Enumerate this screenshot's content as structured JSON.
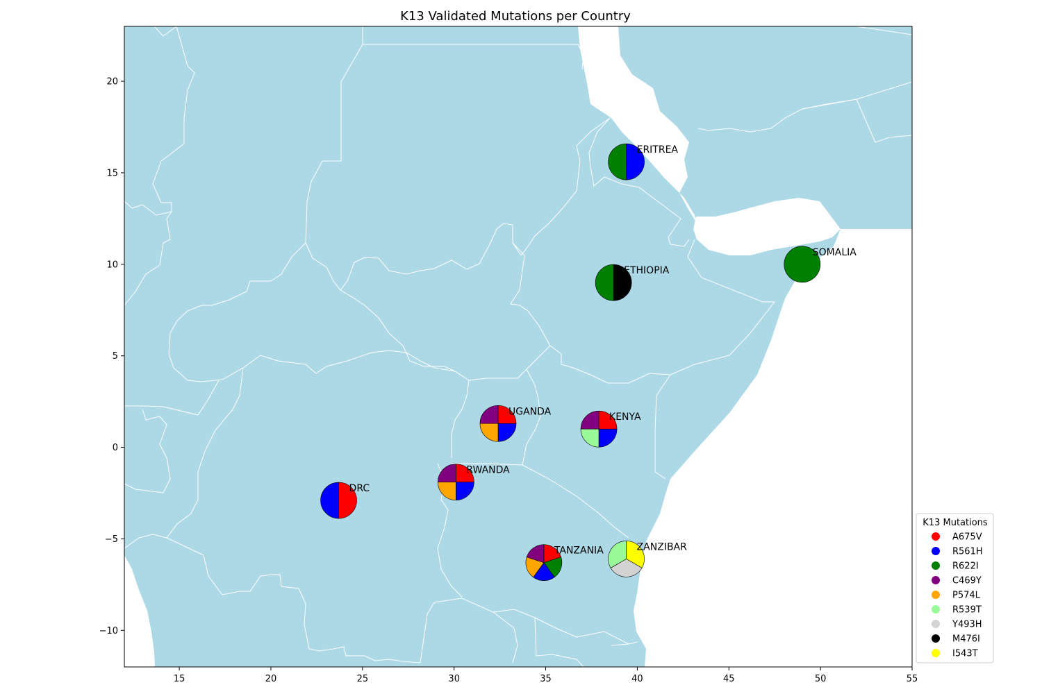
{
  "title": "K13 Validated Mutations per Country",
  "map": {
    "land_color": "#add8e6",
    "border_color": "#ffffff",
    "sea_color": "#ffffff"
  },
  "chart_data": {
    "type": "pie",
    "title": "K13 Validated Mutations per Country",
    "xlim": [
      12,
      55
    ],
    "ylim": [
      -12,
      23
    ],
    "x_ticks": [
      15,
      20,
      25,
      30,
      35,
      40,
      45,
      50,
      55
    ],
    "y_ticks": [
      -10,
      -5,
      0,
      5,
      10,
      15,
      20
    ],
    "grid": false,
    "legend_position": "lower-right",
    "legend": {
      "title": "K13 Mutations",
      "items": [
        {
          "name": "A675V",
          "color": "#ff0000"
        },
        {
          "name": "R561H",
          "color": "#0000ff"
        },
        {
          "name": "R622I",
          "color": "#008000"
        },
        {
          "name": "C469Y",
          "color": "#800080"
        },
        {
          "name": "P574L",
          "color": "#ffa500"
        },
        {
          "name": "R539T",
          "color": "#98fb98"
        },
        {
          "name": "Y493H",
          "color": "#d3d3d3"
        },
        {
          "name": "M476I",
          "color": "#000000"
        },
        {
          "name": "I543T",
          "color": "#ffff00"
        }
      ]
    },
    "countries": [
      {
        "name": "ERITREA",
        "lon": 39.4,
        "lat": 15.6,
        "mutations": [
          "R561H",
          "R622I"
        ]
      },
      {
        "name": "SOMALIA",
        "lon": 49.0,
        "lat": 10.0,
        "mutations": [
          "R622I"
        ]
      },
      {
        "name": "ETHIOPIA",
        "lon": 38.7,
        "lat": 9.0,
        "mutations": [
          "M476I",
          "R622I"
        ]
      },
      {
        "name": "UGANDA",
        "lon": 32.4,
        "lat": 1.3,
        "mutations": [
          "A675V",
          "R561H",
          "P574L",
          "C469Y"
        ]
      },
      {
        "name": "KENYA",
        "lon": 37.9,
        "lat": 1.0,
        "mutations": [
          "A675V",
          "R561H",
          "R539T",
          "C469Y"
        ]
      },
      {
        "name": "RWANDA",
        "lon": 30.1,
        "lat": -1.9,
        "mutations": [
          "A675V",
          "R561H",
          "P574L",
          "C469Y"
        ]
      },
      {
        "name": "DRC",
        "lon": 23.7,
        "lat": -2.9,
        "mutations": [
          "A675V",
          "R561H"
        ]
      },
      {
        "name": "TANZANIA",
        "lon": 34.9,
        "lat": -6.3,
        "mutations": [
          "A675V",
          "R622I",
          "R561H",
          "P574L",
          "C469Y"
        ]
      },
      {
        "name": "ZANZIBAR",
        "lon": 39.4,
        "lat": -6.1,
        "mutations": [
          "I543T",
          "Y493H",
          "R539T"
        ]
      }
    ]
  }
}
